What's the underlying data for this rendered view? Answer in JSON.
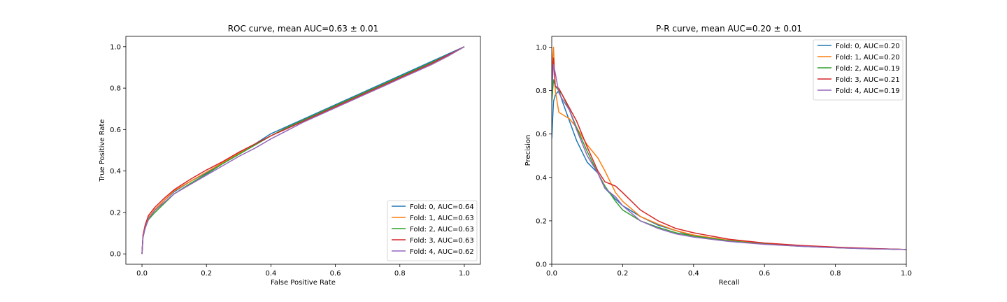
{
  "chart_data": [
    {
      "type": "line",
      "title": "ROC curve, mean AUC=0.63 ± 0.01",
      "xlabel": "False Positive Rate",
      "ylabel": "True Positive Rate",
      "xlim": [
        -0.05,
        1.05
      ],
      "ylim": [
        -0.05,
        1.05
      ],
      "xticks": [
        "0.0",
        "0.2",
        "0.4",
        "0.6",
        "0.8",
        "1.0"
      ],
      "yticks": [
        "0.0",
        "0.2",
        "0.4",
        "0.6",
        "0.8",
        "1.0"
      ],
      "grid": false,
      "legend_position": "lower-right",
      "series": [
        {
          "name": "Fold: 0, AUC=0.64",
          "color": "#1f77b4",
          "x": [
            0,
            0.003,
            0.01,
            0.02,
            0.04,
            0.07,
            0.1,
            0.15,
            0.2,
            0.25,
            0.3,
            0.35,
            0.4,
            0.45,
            0.5,
            0.55,
            0.6,
            0.65,
            0.7,
            0.75,
            0.8,
            0.85,
            0.9,
            0.95,
            1.0
          ],
          "y": [
            0,
            0.08,
            0.13,
            0.17,
            0.21,
            0.26,
            0.3,
            0.35,
            0.39,
            0.44,
            0.49,
            0.53,
            0.58,
            0.615,
            0.65,
            0.685,
            0.72,
            0.755,
            0.79,
            0.825,
            0.86,
            0.895,
            0.93,
            0.965,
            1.0
          ]
        },
        {
          "name": "Fold: 1, AUC=0.63",
          "color": "#ff7f0e",
          "x": [
            0,
            0.003,
            0.01,
            0.02,
            0.04,
            0.07,
            0.1,
            0.15,
            0.2,
            0.25,
            0.3,
            0.35,
            0.4,
            0.45,
            0.5,
            0.55,
            0.6,
            0.65,
            0.7,
            0.75,
            0.8,
            0.85,
            0.9,
            0.95,
            1.0
          ],
          "y": [
            0,
            0.08,
            0.13,
            0.175,
            0.215,
            0.26,
            0.305,
            0.35,
            0.395,
            0.44,
            0.485,
            0.525,
            0.57,
            0.61,
            0.645,
            0.68,
            0.715,
            0.75,
            0.785,
            0.815,
            0.85,
            0.885,
            0.915,
            0.955,
            1.0
          ]
        },
        {
          "name": "Fold: 2, AUC=0.63",
          "color": "#2ca02c",
          "x": [
            0,
            0.003,
            0.01,
            0.02,
            0.04,
            0.07,
            0.1,
            0.15,
            0.2,
            0.25,
            0.3,
            0.35,
            0.4,
            0.45,
            0.5,
            0.55,
            0.6,
            0.65,
            0.7,
            0.75,
            0.8,
            0.85,
            0.9,
            0.95,
            1.0
          ],
          "y": [
            0,
            0.08,
            0.125,
            0.165,
            0.2,
            0.245,
            0.29,
            0.34,
            0.385,
            0.435,
            0.48,
            0.525,
            0.57,
            0.61,
            0.645,
            0.68,
            0.715,
            0.75,
            0.785,
            0.82,
            0.855,
            0.89,
            0.925,
            0.96,
            1.0
          ]
        },
        {
          "name": "Fold: 3, AUC=0.63",
          "color": "#d62728",
          "x": [
            0,
            0.003,
            0.01,
            0.02,
            0.04,
            0.07,
            0.1,
            0.15,
            0.2,
            0.25,
            0.3,
            0.35,
            0.4,
            0.45,
            0.5,
            0.55,
            0.6,
            0.65,
            0.7,
            0.75,
            0.8,
            0.85,
            0.9,
            0.95,
            1.0
          ],
          "y": [
            0,
            0.09,
            0.14,
            0.185,
            0.225,
            0.27,
            0.31,
            0.36,
            0.405,
            0.445,
            0.49,
            0.53,
            0.57,
            0.605,
            0.64,
            0.675,
            0.71,
            0.745,
            0.78,
            0.815,
            0.85,
            0.885,
            0.92,
            0.96,
            1.0
          ]
        },
        {
          "name": "Fold: 4, AUC=0.62",
          "color": "#9467bd",
          "x": [
            0,
            0.003,
            0.01,
            0.02,
            0.04,
            0.07,
            0.1,
            0.15,
            0.2,
            0.25,
            0.3,
            0.35,
            0.4,
            0.45,
            0.5,
            0.55,
            0.6,
            0.65,
            0.7,
            0.75,
            0.8,
            0.85,
            0.9,
            0.95,
            1.0
          ],
          "y": [
            0,
            0.08,
            0.125,
            0.17,
            0.21,
            0.25,
            0.29,
            0.335,
            0.38,
            0.425,
            0.47,
            0.51,
            0.555,
            0.595,
            0.635,
            0.67,
            0.705,
            0.74,
            0.775,
            0.81,
            0.845,
            0.88,
            0.915,
            0.955,
            1.0
          ]
        }
      ]
    },
    {
      "type": "line",
      "title": "P-R curve, mean AUC=0.20 ± 0.01",
      "xlabel": "Recall",
      "ylabel": "Precision",
      "xlim": [
        0,
        1
      ],
      "ylim": [
        0,
        1.05
      ],
      "xticks": [
        "0.0",
        "0.2",
        "0.4",
        "0.6",
        "0.8",
        "1.0"
      ],
      "yticks": [
        "0.0",
        "0.2",
        "0.4",
        "0.6",
        "0.8",
        "1.0"
      ],
      "grid": false,
      "legend_position": "upper-right",
      "series": [
        {
          "name": "Fold: 0, AUC=0.20",
          "color": "#1f77b4",
          "x": [
            0,
            0.005,
            0.01,
            0.02,
            0.03,
            0.05,
            0.07,
            0.1,
            0.13,
            0.15,
            0.18,
            0.2,
            0.25,
            0.3,
            0.35,
            0.4,
            0.5,
            0.6,
            0.7,
            0.8,
            0.9,
            1.0
          ],
          "y": [
            0.58,
            0.75,
            0.78,
            0.8,
            0.75,
            0.66,
            0.57,
            0.47,
            0.42,
            0.35,
            0.3,
            0.27,
            0.22,
            0.18,
            0.155,
            0.13,
            0.11,
            0.095,
            0.085,
            0.078,
            0.072,
            0.068
          ]
        },
        {
          "name": "Fold: 1, AUC=0.20",
          "color": "#ff7f0e",
          "x": [
            0,
            0.005,
            0.01,
            0.02,
            0.03,
            0.05,
            0.07,
            0.1,
            0.13,
            0.15,
            0.18,
            0.2,
            0.25,
            0.3,
            0.35,
            0.4,
            0.5,
            0.6,
            0.7,
            0.8,
            0.9,
            1.0
          ],
          "y": [
            0.9,
            1.0,
            0.8,
            0.7,
            0.69,
            0.67,
            0.63,
            0.55,
            0.49,
            0.43,
            0.33,
            0.29,
            0.22,
            0.185,
            0.155,
            0.135,
            0.11,
            0.095,
            0.085,
            0.078,
            0.072,
            0.068
          ]
        },
        {
          "name": "Fold: 2, AUC=0.19",
          "color": "#2ca02c",
          "x": [
            0,
            0.005,
            0.01,
            0.02,
            0.03,
            0.05,
            0.07,
            0.1,
            0.13,
            0.15,
            0.18,
            0.2,
            0.25,
            0.3,
            0.35,
            0.4,
            0.5,
            0.6,
            0.7,
            0.8,
            0.9,
            1.0
          ],
          "y": [
            0.75,
            0.85,
            0.82,
            0.8,
            0.78,
            0.71,
            0.63,
            0.52,
            0.42,
            0.36,
            0.29,
            0.25,
            0.2,
            0.17,
            0.145,
            0.13,
            0.108,
            0.093,
            0.083,
            0.076,
            0.071,
            0.068
          ]
        },
        {
          "name": "Fold: 3, AUC=0.21",
          "color": "#d62728",
          "x": [
            0,
            0.005,
            0.01,
            0.02,
            0.03,
            0.05,
            0.07,
            0.1,
            0.13,
            0.15,
            0.18,
            0.2,
            0.25,
            0.3,
            0.35,
            0.4,
            0.5,
            0.6,
            0.7,
            0.8,
            0.9,
            1.0
          ],
          "y": [
            0.85,
            0.95,
            0.82,
            0.81,
            0.78,
            0.72,
            0.66,
            0.54,
            0.43,
            0.38,
            0.36,
            0.33,
            0.25,
            0.2,
            0.165,
            0.145,
            0.115,
            0.098,
            0.087,
            0.079,
            0.073,
            0.068
          ]
        },
        {
          "name": "Fold: 4, AUC=0.19",
          "color": "#9467bd",
          "x": [
            0,
            0.005,
            0.01,
            0.02,
            0.03,
            0.05,
            0.07,
            0.1,
            0.13,
            0.15,
            0.18,
            0.2,
            0.25,
            0.3,
            0.35,
            0.4,
            0.5,
            0.6,
            0.7,
            0.8,
            0.9,
            1.0
          ],
          "y": [
            0.8,
            0.92,
            0.88,
            0.79,
            0.76,
            0.71,
            0.62,
            0.5,
            0.42,
            0.35,
            0.31,
            0.27,
            0.2,
            0.165,
            0.14,
            0.125,
            0.105,
            0.092,
            0.083,
            0.076,
            0.071,
            0.068
          ]
        }
      ]
    }
  ]
}
